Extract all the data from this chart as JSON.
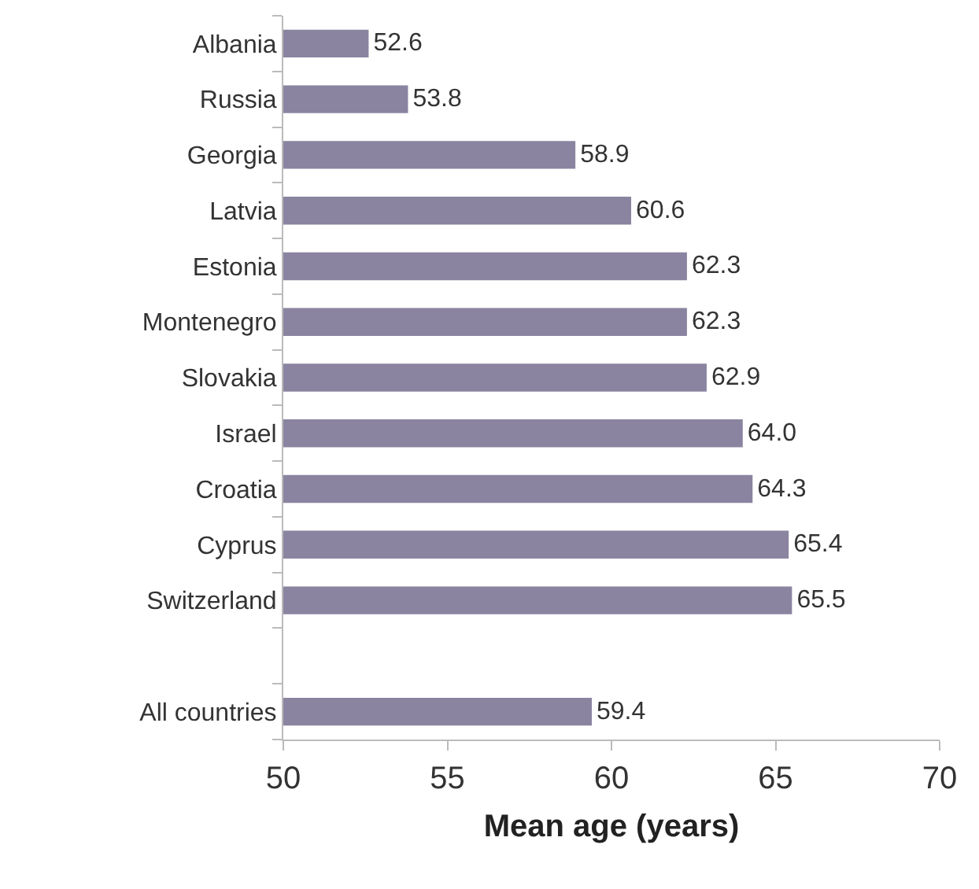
{
  "chart_data": {
    "type": "bar",
    "orientation": "horizontal",
    "xlabel": "Mean age (years)",
    "categories": [
      "Albania",
      "Russia",
      "Georgia",
      "Latvia",
      "Estonia",
      "Montenegro",
      "Slovakia",
      "Israel",
      "Croatia",
      "Cyprus",
      "Switzerland",
      null,
      "All countries"
    ],
    "values": [
      52.6,
      53.8,
      58.9,
      60.6,
      62.3,
      62.3,
      62.9,
      64.0,
      64.3,
      65.4,
      65.5,
      null,
      59.4
    ],
    "value_labels": [
      "52.6",
      "53.8",
      "58.9",
      "60.6",
      "62.3",
      "62.3",
      "62.9",
      "64.0",
      "64.3",
      "65.4",
      "65.5",
      null,
      "59.4"
    ],
    "color": "#8a84a0",
    "xlim": [
      50,
      70
    ],
    "xticks": [
      50,
      55,
      60,
      65,
      70
    ],
    "grid": false,
    "legend": false
  }
}
